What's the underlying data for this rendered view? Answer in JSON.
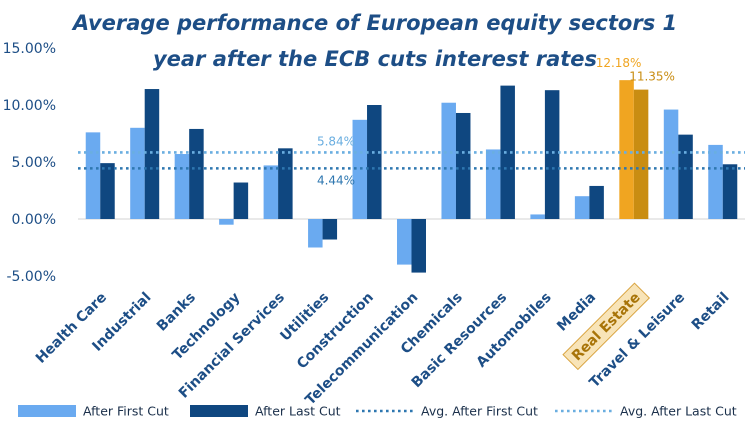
{
  "chart_data": {
    "type": "bar",
    "title_lines": [
      "Average performance of European equity sectors 1",
      "year after the ECB cuts interest rates"
    ],
    "categories": [
      "Health Care",
      "Industrial",
      "Banks",
      "Technology",
      "Financial Services",
      "Utilities",
      "Construction",
      "Telecommunication",
      "Chemicals",
      "Basic Resources",
      "Automobiles",
      "Media",
      "Real Estate",
      "Travel & Leisure",
      "Retail"
    ],
    "series": [
      {
        "name": "After First Cut",
        "values": [
          7.6,
          8.0,
          5.7,
          -0.5,
          4.7,
          -2.5,
          8.7,
          -4.0,
          10.2,
          6.1,
          0.4,
          2.0,
          12.18,
          9.6,
          6.5
        ]
      },
      {
        "name": "After Last Cut",
        "values": [
          4.9,
          11.4,
          7.9,
          3.2,
          6.2,
          -1.8,
          10.0,
          -4.7,
          9.3,
          11.7,
          11.3,
          2.9,
          11.35,
          7.4,
          4.8
        ]
      }
    ],
    "averages": [
      {
        "name": "Avg. After First Cut",
        "value": 4.44,
        "label": "4.44%"
      },
      {
        "name": "Avg. After Last Cut",
        "value": 5.84,
        "label": "5.84%"
      }
    ],
    "highlight": {
      "category": "Real Estate",
      "labels": [
        "12.18%",
        "11.35%"
      ]
    },
    "y_ticks": [
      "15.00%",
      "10.00%",
      "5.00%",
      "0.00%",
      "-5.00%"
    ],
    "y_tick_values": [
      15,
      10,
      5,
      0,
      -5
    ],
    "ylim": [
      -5,
      15
    ],
    "legend_position": "bottom",
    "colors": {
      "first": "#6aaaf0",
      "last": "#0f4780",
      "first_highlight": "#f0a521",
      "last_highlight": "#c98d12",
      "avg_first": "#2e77b0",
      "avg_last": "#6aaee0",
      "title": "#1d4e86",
      "axis_text": "#1d4e86",
      "highlight_box": "#f8e4b8",
      "highlight_border": "#d9a440"
    }
  }
}
